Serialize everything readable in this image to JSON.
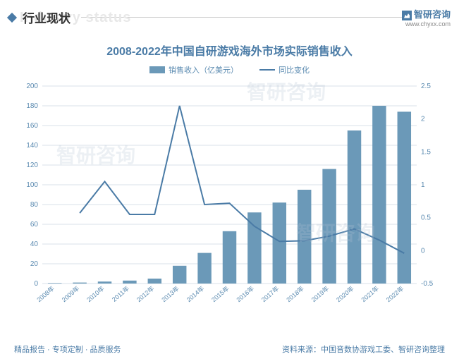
{
  "header": {
    "title_cn": "行业现状",
    "title_ghost": "Industry status",
    "brand": "智研咨询",
    "url": "www.chyxx.com"
  },
  "chart": {
    "title": "2008-2022年中国自研游戏海外市场实际销售收入",
    "legend": {
      "bar_label": "销售收入（亿美元）",
      "line_label": "同比变化"
    },
    "categories": [
      "2008年",
      "2009年",
      "2010年",
      "2011年",
      "2012年",
      "2013年",
      "2014年",
      "2015年",
      "2016年",
      "2017年",
      "2018年",
      "2019年",
      "2020年",
      "2021年",
      "2022年"
    ],
    "bar_values": [
      0.5,
      1,
      2,
      3,
      5,
      18,
      31,
      53,
      72,
      82,
      95,
      116,
      155,
      180,
      174
    ],
    "line_values": [
      null,
      0.57,
      1.05,
      0.55,
      0.55,
      2.2,
      0.7,
      0.72,
      0.37,
      0.14,
      0.15,
      0.22,
      0.33,
      0.16,
      -0.04
    ],
    "y_left": {
      "min": 0,
      "max": 200,
      "step": 20
    },
    "y_right": {
      "min": -0.5,
      "max": 2.5,
      "step": 0.5
    },
    "colors": {
      "bar": "#6b99b8",
      "line": "#4a7ba6",
      "grid": "#d8e0e8",
      "axis_text": "#5a8ab0",
      "title": "#4a7ba6",
      "background": "#ffffff"
    },
    "bar_width_ratio": 0.55,
    "font": {
      "title_size": 16,
      "axis_size": 10,
      "legend_size": 11
    }
  },
  "footer": {
    "left": "精品报告 · 专项定制 · 品质服务",
    "right": "资料来源：中国音数协游戏工委、智研咨询整理"
  },
  "watermarks": [
    "智研咨询",
    "智研咨询",
    "智研咨询"
  ]
}
